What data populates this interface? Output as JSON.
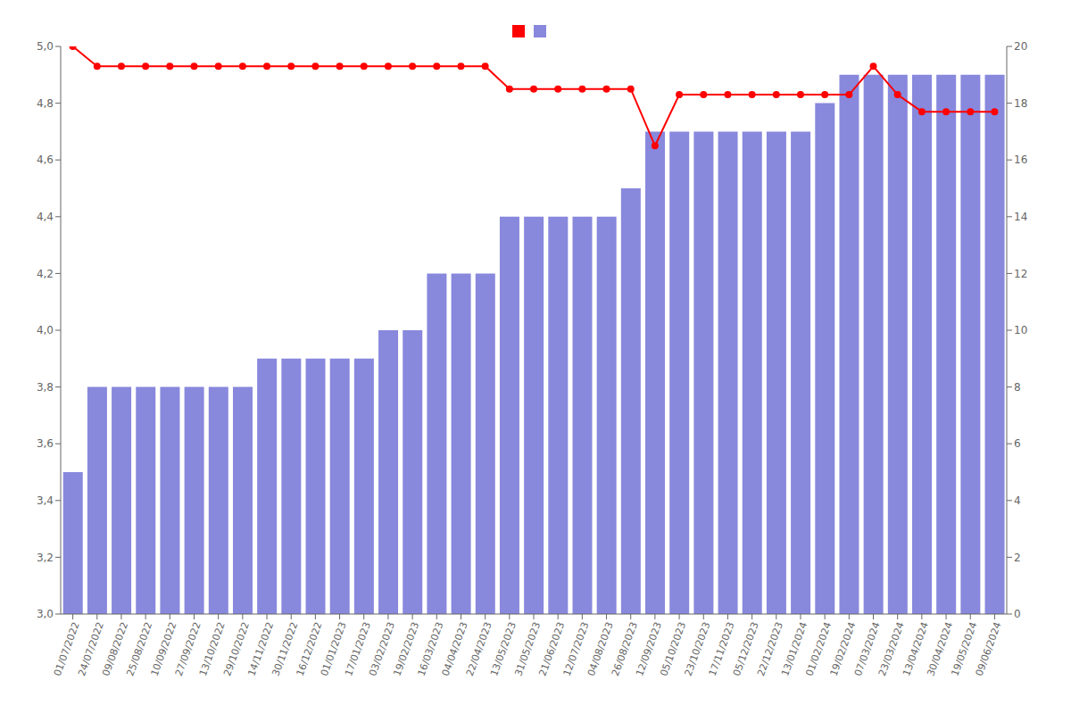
{
  "chart_data": {
    "type": "bar",
    "categories": [
      "01/07/2022",
      "24/07/2022",
      "09/08/2022",
      "25/08/2022",
      "10/09/2022",
      "27/09/2022",
      "13/10/2022",
      "29/10/2022",
      "14/11/2022",
      "30/11/2022",
      "16/12/2022",
      "01/01/2023",
      "17/01/2023",
      "03/02/2023",
      "19/02/2023",
      "16/03/2023",
      "04/04/2023",
      "22/04/2023",
      "13/05/2023",
      "31/05/2023",
      "21/06/2023",
      "12/07/2023",
      "04/08/2023",
      "26/08/2023",
      "12/09/2023",
      "05/10/2023",
      "23/10/2023",
      "17/11/2023",
      "05/12/2023",
      "22/12/2023",
      "13/01/2024",
      "01/02/2024",
      "19/02/2024",
      "07/03/2024",
      "23/03/2024",
      "13/04/2024",
      "30/04/2024",
      "19/05/2024",
      "09/06/2024"
    ],
    "series": [
      {
        "type": "line",
        "color": "#ff0000",
        "marker": "circle",
        "values": [
          5.0,
          4.93,
          4.93,
          4.93,
          4.93,
          4.93,
          4.93,
          4.93,
          4.93,
          4.93,
          4.93,
          4.93,
          4.93,
          4.93,
          4.93,
          4.93,
          4.93,
          4.93,
          4.85,
          4.85,
          4.85,
          4.85,
          4.85,
          4.85,
          4.65,
          4.83,
          4.83,
          4.83,
          4.83,
          4.83,
          4.83,
          4.83,
          4.83,
          4.93,
          4.83,
          4.77,
          4.77,
          4.77,
          4.77
        ]
      },
      {
        "type": "bar",
        "color": "#8888dd",
        "values": [
          3.5,
          3.8,
          3.8,
          3.8,
          3.8,
          3.8,
          3.8,
          3.8,
          3.9,
          3.9,
          3.9,
          3.9,
          3.9,
          4.0,
          4.0,
          4.2,
          4.2,
          4.2,
          4.4,
          4.4,
          4.4,
          4.4,
          4.4,
          4.5,
          4.7,
          4.7,
          4.7,
          4.7,
          4.7,
          4.7,
          4.7,
          4.8,
          4.9,
          4.9,
          4.9,
          4.9,
          4.9,
          4.9,
          4.9
        ]
      }
    ],
    "ylim": [
      3.0,
      5.0
    ],
    "yticks": [
      {
        "value": 3.0,
        "label": "3,0"
      },
      {
        "value": 3.2,
        "label": "3,2"
      },
      {
        "value": 3.4,
        "label": "3,4"
      },
      {
        "value": 3.6,
        "label": "3,6"
      },
      {
        "value": 3.8,
        "label": "3,8"
      },
      {
        "value": 4.0,
        "label": "4,0"
      },
      {
        "value": 4.2,
        "label": "4,2"
      },
      {
        "value": 4.4,
        "label": "4,4"
      },
      {
        "value": 4.6,
        "label": "4,6"
      },
      {
        "value": 4.8,
        "label": "4,8"
      },
      {
        "value": 5.0,
        "label": "5,0"
      }
    ],
    "y2lim": [
      0,
      20
    ],
    "y2ticks": [
      0,
      2,
      4,
      6,
      8,
      10,
      12,
      14,
      16,
      18,
      20
    ],
    "legend": "top",
    "grid": false
  }
}
